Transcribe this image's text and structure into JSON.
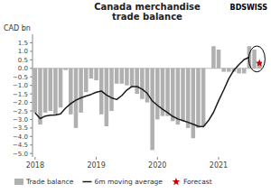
{
  "chart_data": {
    "type": "bar",
    "title": "Canada merchandise\ntrade balance",
    "ylabel": "CAD bn",
    "annotations": [
      "BDSWISS"
    ],
    "categories": [
      "2018",
      null,
      null,
      null,
      null,
      null,
      null,
      null,
      null,
      null,
      null,
      null,
      "2019",
      null,
      null,
      null,
      null,
      null,
      null,
      null,
      null,
      null,
      null,
      null,
      "2020",
      null,
      null,
      null,
      null,
      null,
      null,
      null,
      null,
      null,
      null,
      null,
      "2021",
      null,
      null,
      null,
      null,
      null,
      null,
      null,
      null
    ],
    "series": [
      {
        "name": "Trade balance",
        "type": "bar",
        "color": "#b0b0b0",
        "values": [
          -2.6,
          -3.3,
          -2.6,
          -2.5,
          -2.7,
          -2.3,
          -0.1,
          -2.7,
          -3.5,
          -2.6,
          -1.4,
          -0.6,
          -0.7,
          -2.7,
          -3.4,
          -2.5,
          -0.9,
          -0.9,
          -1.0,
          -1.1,
          -1.5,
          -1.8,
          -2.0,
          -4.8,
          -3.0,
          -2.8,
          -2.8,
          -3.1,
          -3.3,
          -3.1,
          -3.5,
          -4.1,
          -3.5,
          -3.4,
          0.0,
          1.3,
          1.1,
          -0.2,
          -0.2,
          -0.2,
          -0.3,
          -0.3,
          1.3,
          1.1,
          0.3
        ]
      },
      {
        "name": "6m moving average",
        "type": "line",
        "color": "#1a1a1a",
        "values": [
          -2.6,
          -2.95,
          -2.8,
          -2.75,
          -2.74,
          -2.67,
          -2.33,
          -2.07,
          -1.87,
          -1.73,
          -1.63,
          -1.53,
          -1.4,
          -1.33,
          -1.57,
          -1.73,
          -1.83,
          -1.6,
          -1.27,
          -1.07,
          -1.07,
          -1.22,
          -1.47,
          -1.92,
          -2.17,
          -2.4,
          -2.6,
          -2.82,
          -2.97,
          -3.07,
          -3.17,
          -3.28,
          -3.4,
          -3.43,
          -3.07,
          -2.58,
          -1.9,
          -1.27,
          -0.6,
          -0.1,
          0.23,
          0.52,
          0.65,
          null,
          null
        ]
      },
      {
        "name": "Forecast",
        "type": "scatter",
        "marker": "star",
        "color": "#cc0000",
        "values": [
          null,
          null,
          null,
          null,
          null,
          null,
          null,
          null,
          null,
          null,
          null,
          null,
          null,
          null,
          null,
          null,
          null,
          null,
          null,
          null,
          null,
          null,
          null,
          null,
          null,
          null,
          null,
          null,
          null,
          null,
          null,
          null,
          null,
          null,
          null,
          null,
          null,
          null,
          null,
          null,
          null,
          null,
          null,
          null,
          0.3
        ]
      }
    ],
    "ylim": [
      -5.2,
      2.0
    ],
    "yticks": [
      {
        "value": -5.0,
        "label": "−5.0"
      },
      {
        "value": -4.5,
        "label": "−4.5"
      },
      {
        "value": -4.0,
        "label": "−4.0"
      },
      {
        "value": -3.5,
        "label": "−3.5"
      },
      {
        "value": -3.0,
        "label": "−3.0"
      },
      {
        "value": -2.5,
        "label": "−2.5"
      },
      {
        "value": -2.0,
        "label": "−2.0"
      },
      {
        "value": -1.5,
        "label": "−1.5"
      },
      {
        "value": -1.0,
        "label": "−1.0"
      },
      {
        "value": -0.5,
        "label": "−0.5"
      },
      {
        "value": 0.0,
        "label": "0.0"
      },
      {
        "value": 0.5,
        "label": "0.5"
      },
      {
        "value": 1.0,
        "label": "1.0"
      },
      {
        "value": 1.5,
        "label": "1.5"
      }
    ],
    "grid": false,
    "legend": "bottom"
  }
}
